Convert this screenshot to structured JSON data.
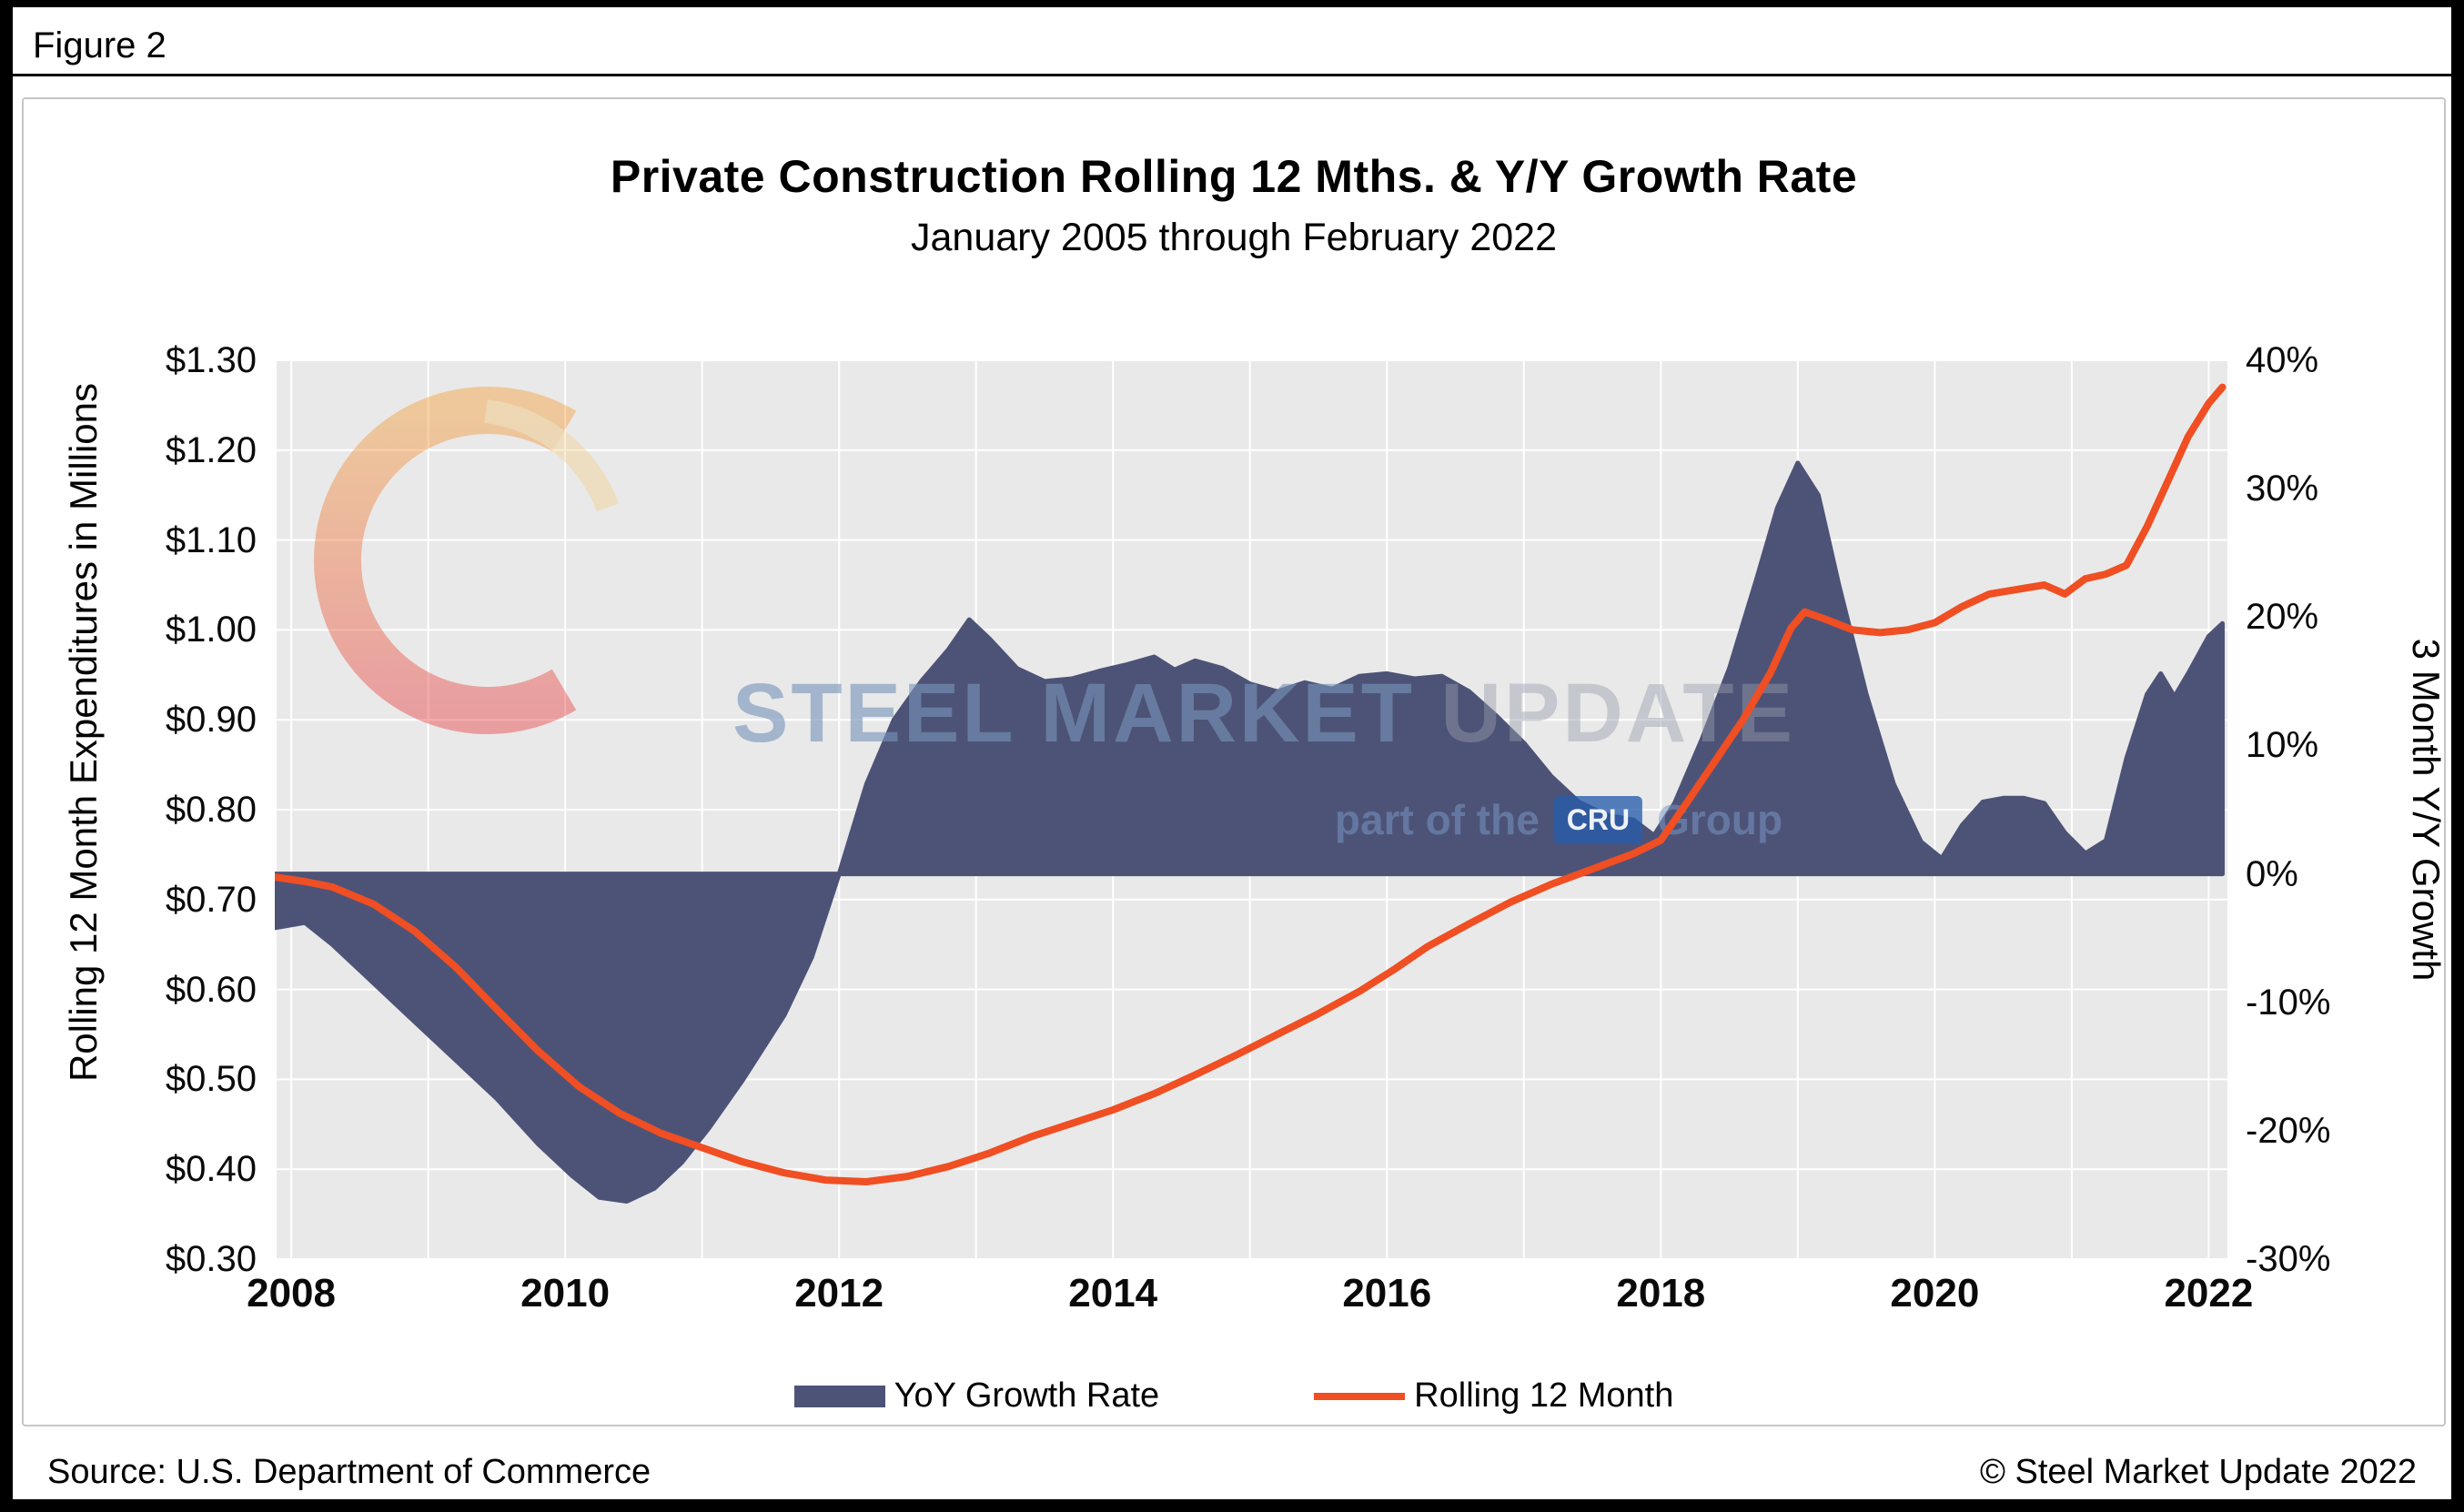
{
  "figure_label": "Figure 2",
  "source": "Source: U.S. Department of Commerce",
  "copyright": "© Steel Market Update 2022",
  "watermark": {
    "line1_strong": "STEEL MARKET",
    "line1_light": "UPDATE",
    "line2_prefix": "part of the",
    "line2_badge": "CRU",
    "line2_suffix": "Group"
  },
  "legend": [
    {
      "label": "YoY Growth Rate",
      "type": "area",
      "color": "#4D5377"
    },
    {
      "label": "Rolling 12 Month",
      "type": "line",
      "color": "#F04E23"
    }
  ],
  "colors": {
    "plot_bg": "#E9E9E9",
    "grid": "#FFFFFF",
    "area": "#4D5377",
    "line": "#F04E23",
    "page_bg": "#FFFFFF",
    "frame": "#000000"
  },
  "chart_data": {
    "type": "combo-area-line",
    "title": "Private Construction Rolling 12 Mths. & Y/Y Growth Rate",
    "subtitle": "January 2005 through February 2022",
    "grid": true,
    "legend_position": "bottom",
    "left_axis": {
      "title": "Rolling 12 Month Expenditures in Millions",
      "min": 0.3,
      "max": 1.3,
      "tick_step": 0.1,
      "tick_values": [
        1.3,
        1.2,
        1.1,
        1.0,
        0.9,
        0.8,
        0.7,
        0.6,
        0.5,
        0.4,
        0.3
      ],
      "tick_labels": [
        "$1.30",
        "$1.20",
        "$1.10",
        "$1.00",
        "$0.90",
        "$0.80",
        "$0.70",
        "$0.60",
        "$0.50",
        "$0.40",
        "$0.30"
      ]
    },
    "right_axis": {
      "title": "3 Month Y/Y Growth",
      "min": -30,
      "max": 40,
      "tick_step": 10,
      "tick_values": [
        40,
        30,
        20,
        10,
        0,
        -10,
        -20,
        -30
      ],
      "tick_labels": [
        "40%",
        "30%",
        "20%",
        "10%",
        "0%",
        "-10%",
        "-20%",
        "-30%"
      ]
    },
    "x_axis": {
      "min": 2007.88,
      "max": 2022.15,
      "grid_from": 2008,
      "grid_to": 2022,
      "grid_step": 1,
      "tick_values": [
        2008,
        2010,
        2012,
        2014,
        2016,
        2018,
        2020,
        2022
      ],
      "tick_labels": [
        "2008",
        "2010",
        "2012",
        "2014",
        "2016",
        "2018",
        "2020",
        "2022"
      ]
    },
    "series": [
      {
        "name": "YoY Growth Rate",
        "type": "area",
        "axis": "right",
        "unit": "%",
        "baseline": 0,
        "color": "#4D5377",
        "points": [
          [
            2007.88,
            -4.2
          ],
          [
            2008.1,
            -3.8
          ],
          [
            2008.3,
            -5.5
          ],
          [
            2008.6,
            -8.5
          ],
          [
            2008.9,
            -11.5
          ],
          [
            2009.2,
            -14.5
          ],
          [
            2009.5,
            -17.5
          ],
          [
            2009.8,
            -21
          ],
          [
            2010.05,
            -23.5
          ],
          [
            2010.25,
            -25.2
          ],
          [
            2010.45,
            -25.5
          ],
          [
            2010.65,
            -24.5
          ],
          [
            2010.85,
            -22.5
          ],
          [
            2011.05,
            -19.8
          ],
          [
            2011.3,
            -16
          ],
          [
            2011.6,
            -11
          ],
          [
            2011.8,
            -6.5
          ],
          [
            2012.0,
            0
          ],
          [
            2012.2,
            7
          ],
          [
            2012.4,
            12
          ],
          [
            2012.6,
            15
          ],
          [
            2012.8,
            17.5
          ],
          [
            2012.95,
            19.8
          ],
          [
            2013.1,
            18.3
          ],
          [
            2013.3,
            16
          ],
          [
            2013.5,
            15
          ],
          [
            2013.7,
            15.2
          ],
          [
            2013.9,
            15.8
          ],
          [
            2014.1,
            16.3
          ],
          [
            2014.3,
            16.9
          ],
          [
            2014.45,
            15.9
          ],
          [
            2014.6,
            16.6
          ],
          [
            2014.8,
            16
          ],
          [
            2015.0,
            14.8
          ],
          [
            2015.2,
            14.2
          ],
          [
            2015.4,
            14.9
          ],
          [
            2015.6,
            14.4
          ],
          [
            2015.8,
            15.4
          ],
          [
            2016.0,
            15.6
          ],
          [
            2016.2,
            15.2
          ],
          [
            2016.4,
            15.4
          ],
          [
            2016.6,
            14.2
          ],
          [
            2016.8,
            12.3
          ],
          [
            2017.0,
            10.2
          ],
          [
            2017.2,
            7.6
          ],
          [
            2017.4,
            5.6
          ],
          [
            2017.6,
            4.6
          ],
          [
            2017.8,
            4.2
          ],
          [
            2017.95,
            3
          ],
          [
            2018.1,
            5.5
          ],
          [
            2018.3,
            10.5
          ],
          [
            2018.5,
            16
          ],
          [
            2018.7,
            23
          ],
          [
            2018.85,
            28.5
          ],
          [
            2019.0,
            32
          ],
          [
            2019.15,
            29.5
          ],
          [
            2019.3,
            22.5
          ],
          [
            2019.5,
            14
          ],
          [
            2019.7,
            7
          ],
          [
            2019.9,
            2.5
          ],
          [
            2020.05,
            1.2
          ],
          [
            2020.2,
            3.8
          ],
          [
            2020.35,
            5.6
          ],
          [
            2020.5,
            5.9
          ],
          [
            2020.65,
            5.9
          ],
          [
            2020.8,
            5.5
          ],
          [
            2020.95,
            3.2
          ],
          [
            2021.1,
            1.6
          ],
          [
            2021.25,
            2.6
          ],
          [
            2021.4,
            9
          ],
          [
            2021.55,
            14
          ],
          [
            2021.65,
            15.6
          ],
          [
            2021.75,
            13.8
          ],
          [
            2021.85,
            15.6
          ],
          [
            2022.0,
            18.5
          ],
          [
            2022.1,
            19.5
          ]
        ]
      },
      {
        "name": "Rolling 12 Month",
        "type": "line",
        "axis": "left",
        "unit": "$ Millions",
        "color": "#F04E23",
        "points": [
          [
            2007.88,
            0.725
          ],
          [
            2008.1,
            0.72
          ],
          [
            2008.3,
            0.714
          ],
          [
            2008.6,
            0.695
          ],
          [
            2008.9,
            0.665
          ],
          [
            2009.2,
            0.625
          ],
          [
            2009.5,
            0.578
          ],
          [
            2009.8,
            0.532
          ],
          [
            2010.1,
            0.492
          ],
          [
            2010.4,
            0.462
          ],
          [
            2010.7,
            0.44
          ],
          [
            2011.0,
            0.424
          ],
          [
            2011.3,
            0.408
          ],
          [
            2011.6,
            0.396
          ],
          [
            2011.9,
            0.388
          ],
          [
            2012.2,
            0.386
          ],
          [
            2012.5,
            0.392
          ],
          [
            2012.8,
            0.403
          ],
          [
            2013.1,
            0.418
          ],
          [
            2013.4,
            0.436
          ],
          [
            2013.7,
            0.451
          ],
          [
            2014.0,
            0.466
          ],
          [
            2014.3,
            0.484
          ],
          [
            2014.6,
            0.505
          ],
          [
            2014.9,
            0.527
          ],
          [
            2015.2,
            0.55
          ],
          [
            2015.5,
            0.573
          ],
          [
            2015.8,
            0.598
          ],
          [
            2016.05,
            0.622
          ],
          [
            2016.3,
            0.648
          ],
          [
            2016.6,
            0.673
          ],
          [
            2016.9,
            0.697
          ],
          [
            2017.2,
            0.717
          ],
          [
            2017.5,
            0.734
          ],
          [
            2017.8,
            0.751
          ],
          [
            2018.0,
            0.766
          ],
          [
            2018.2,
            0.81
          ],
          [
            2018.4,
            0.855
          ],
          [
            2018.6,
            0.9
          ],
          [
            2018.8,
            0.952
          ],
          [
            2018.95,
            1.002
          ],
          [
            2019.05,
            1.02
          ],
          [
            2019.2,
            1.012
          ],
          [
            2019.4,
            1.0
          ],
          [
            2019.6,
            0.997
          ],
          [
            2019.8,
            1.0
          ],
          [
            2020.0,
            1.008
          ],
          [
            2020.2,
            1.026
          ],
          [
            2020.4,
            1.04
          ],
          [
            2020.6,
            1.045
          ],
          [
            2020.8,
            1.05
          ],
          [
            2020.95,
            1.04
          ],
          [
            2021.1,
            1.057
          ],
          [
            2021.25,
            1.062
          ],
          [
            2021.4,
            1.072
          ],
          [
            2021.55,
            1.115
          ],
          [
            2021.7,
            1.165
          ],
          [
            2021.85,
            1.215
          ],
          [
            2022.0,
            1.252
          ],
          [
            2022.1,
            1.27
          ]
        ]
      }
    ]
  }
}
